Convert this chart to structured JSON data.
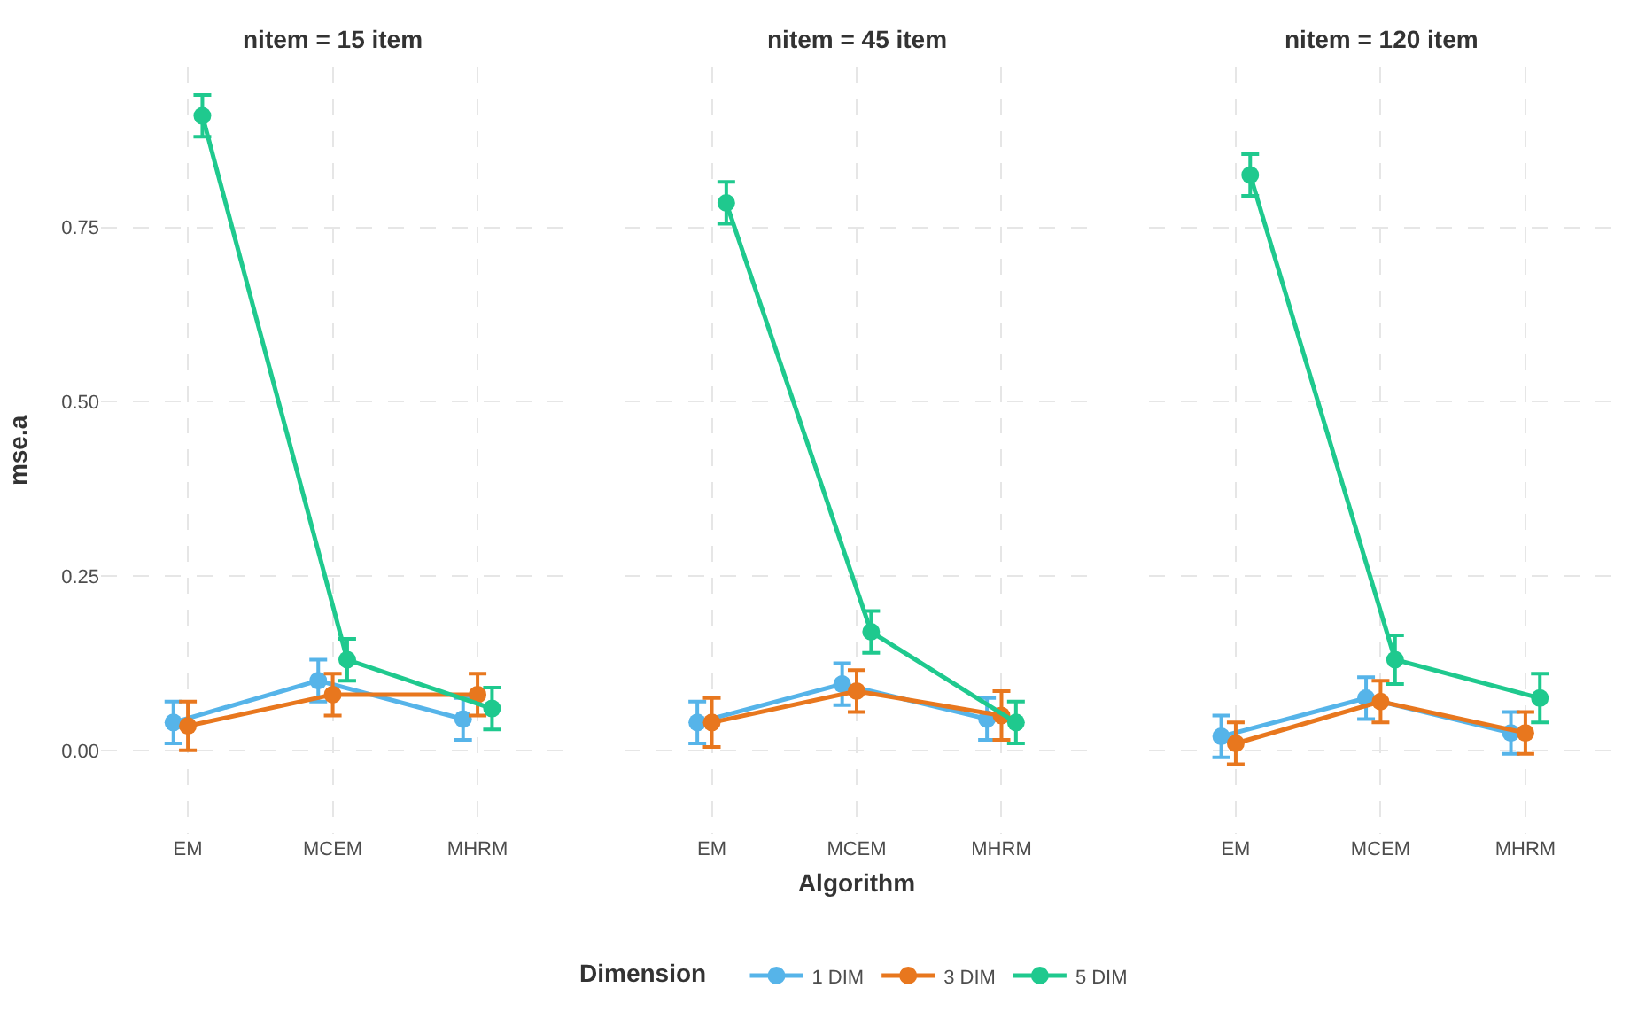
{
  "chart_data": [
    {
      "type": "line",
      "title": "nitem = 15 item",
      "ylabel": "mse.a",
      "legend_title": "Dimension",
      "legend": "bottom",
      "categories": [
        "EM",
        "MCEM",
        "MHRM"
      ],
      "ylim": [
        -0.12,
        0.98
      ],
      "yticks": [
        {
          "value": 0,
          "label": "0.00"
        },
        0.25,
        {
          "value": 0.5,
          "label": "0.50"
        },
        0.75
      ],
      "grid": true,
      "marker": "circle",
      "series": [
        {
          "name": "1 DIM",
          "color": "#56b4e9",
          "values": [
            0.04,
            0.1,
            0.045
          ],
          "errors": [
            0.03,
            0.03,
            0.03
          ]
        },
        {
          "name": "3 DIM",
          "color": "#e8771e",
          "values": [
            0.035,
            0.08,
            0.08
          ],
          "errors": [
            0.035,
            0.03,
            0.03
          ]
        },
        {
          "name": "5 DIM",
          "color": "#1fc98e",
          "values": [
            0.91,
            0.13,
            0.06
          ],
          "errors": [
            0.03,
            0.03,
            0.03
          ]
        }
      ]
    },
    {
      "type": "line",
      "title": "nitem = 45 item",
      "xlabel": "Algorithm",
      "categories": [
        "EM",
        "MCEM",
        "MHRM"
      ],
      "ylim": [
        -0.12,
        0.98
      ],
      "tick_labels": "x",
      "grid": true,
      "marker": "circle",
      "series": [
        {
          "name": "1 DIM",
          "color": "#56b4e9",
          "values": [
            0.04,
            0.095,
            0.045
          ],
          "errors": [
            0.03,
            0.03,
            0.03
          ]
        },
        {
          "name": "3 DIM",
          "color": "#e8771e",
          "values": [
            0.04,
            0.085,
            0.05
          ],
          "errors": [
            0.035,
            0.03,
            0.035
          ]
        },
        {
          "name": "5 DIM",
          "color": "#1fc98e",
          "values": [
            0.785,
            0.17,
            0.04
          ],
          "errors": [
            0.03,
            0.03,
            0.03
          ]
        }
      ]
    },
    {
      "type": "line",
      "title": "nitem = 120 item",
      "categories": [
        "EM",
        "MCEM",
        "MHRM"
      ],
      "ylim": [
        -0.12,
        0.98
      ],
      "tick_labels": "x",
      "grid": true,
      "marker": "circle",
      "series": [
        {
          "name": "1 DIM",
          "color": "#56b4e9",
          "values": [
            0.02,
            0.075,
            0.025
          ],
          "errors": [
            0.03,
            0.03,
            0.03
          ]
        },
        {
          "name": "3 DIM",
          "color": "#e8771e",
          "values": [
            0.01,
            0.07,
            0.025
          ],
          "errors": [
            0.03,
            0.03,
            0.03
          ]
        },
        {
          "name": "5 DIM",
          "color": "#1fc98e",
          "values": [
            0.825,
            0.13,
            0.075
          ],
          "errors": [
            0.03,
            0.035,
            0.035
          ]
        }
      ]
    }
  ]
}
